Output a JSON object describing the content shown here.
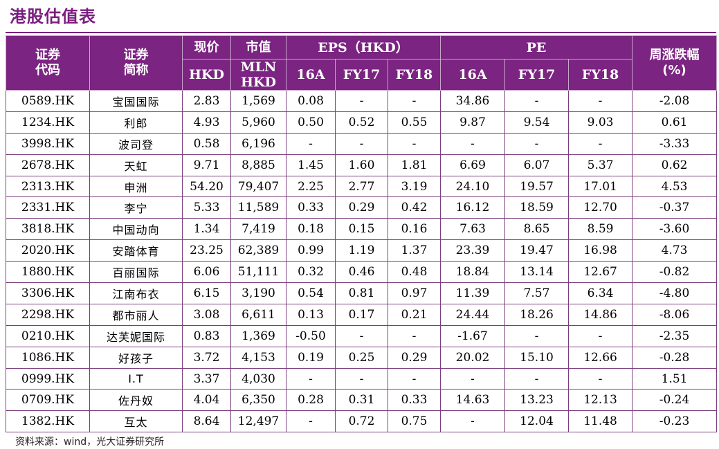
{
  "title": "港股估值表",
  "header": {
    "code_line1": "证券",
    "code_line2": "代码",
    "name_line1": "证券",
    "name_line2": "简称",
    "price": "现价",
    "price_unit": "HKD",
    "mcap": "市值",
    "mcap_unit_line1": "MLN",
    "mcap_unit_line2": "HKD",
    "eps_group": "EPS（HKD）",
    "pe_group": "PE",
    "weekly_line1": "周涨跌幅",
    "weekly_line2": "(%)",
    "years": [
      "16A",
      "FY17",
      "FY18"
    ]
  },
  "rows": [
    {
      "code": "0589.HK",
      "name": "宝国国际",
      "price": "2.83",
      "mcap": "1,569",
      "eps16": "0.08",
      "eps17": "-",
      "eps18": "-",
      "pe16": "34.86",
      "pe17": "-",
      "pe18": "-",
      "chg": "-2.08"
    },
    {
      "code": "1234.HK",
      "name": "利郎",
      "price": "4.93",
      "mcap": "5,960",
      "eps16": "0.50",
      "eps17": "0.52",
      "eps18": "0.55",
      "pe16": "9.87",
      "pe17": "9.54",
      "pe18": "9.03",
      "chg": "0.61"
    },
    {
      "code": "3998.HK",
      "name": "波司登",
      "price": "0.58",
      "mcap": "6,196",
      "eps16": "-",
      "eps17": "-",
      "eps18": "-",
      "pe16": "-",
      "pe17": "-",
      "pe18": "-",
      "chg": "-3.33"
    },
    {
      "code": "2678.HK",
      "name": "天虹",
      "price": "9.71",
      "mcap": "8,885",
      "eps16": "1.45",
      "eps17": "1.60",
      "eps18": "1.81",
      "pe16": "6.69",
      "pe17": "6.07",
      "pe18": "5.37",
      "chg": "0.62"
    },
    {
      "code": "2313.HK",
      "name": "申洲",
      "price": "54.20",
      "mcap": "79,407",
      "eps16": "2.25",
      "eps17": "2.77",
      "eps18": "3.19",
      "pe16": "24.10",
      "pe17": "19.57",
      "pe18": "17.01",
      "chg": "4.53"
    },
    {
      "code": "2331.HK",
      "name": "李宁",
      "price": "5.33",
      "mcap": "11,589",
      "eps16": "0.33",
      "eps17": "0.29",
      "eps18": "0.42",
      "pe16": "16.12",
      "pe17": "18.59",
      "pe18": "12.70",
      "chg": "-0.37"
    },
    {
      "code": "3818.HK",
      "name": "中国动向",
      "price": "1.34",
      "mcap": "7,419",
      "eps16": "0.18",
      "eps17": "0.15",
      "eps18": "0.16",
      "pe16": "7.63",
      "pe17": "8.65",
      "pe18": "8.59",
      "chg": "-3.60"
    },
    {
      "code": "2020.HK",
      "name": "安踏体育",
      "price": "23.25",
      "mcap": "62,389",
      "eps16": "0.99",
      "eps17": "1.19",
      "eps18": "1.37",
      "pe16": "23.39",
      "pe17": "19.47",
      "pe18": "16.98",
      "chg": "4.73"
    },
    {
      "code": "1880.HK",
      "name": "百丽国际",
      "price": "6.06",
      "mcap": "51,111",
      "eps16": "0.32",
      "eps17": "0.46",
      "eps18": "0.48",
      "pe16": "18.84",
      "pe17": "13.14",
      "pe18": "12.67",
      "chg": "-0.82"
    },
    {
      "code": "3306.HK",
      "name": "江南布衣",
      "price": "6.15",
      "mcap": "3,190",
      "eps16": "0.54",
      "eps17": "0.81",
      "eps18": "0.97",
      "pe16": "11.39",
      "pe17": "7.57",
      "pe18": "6.34",
      "chg": "-4.80"
    },
    {
      "code": "2298.HK",
      "name": "都市丽人",
      "price": "3.08",
      "mcap": "6,611",
      "eps16": "0.13",
      "eps17": "0.17",
      "eps18": "0.21",
      "pe16": "24.44",
      "pe17": "18.26",
      "pe18": "14.86",
      "chg": "-8.06"
    },
    {
      "code": "0210.HK",
      "name": "达芙妮国际",
      "price": "0.83",
      "mcap": "1,369",
      "eps16": "-0.50",
      "eps17": "-",
      "eps18": "-",
      "pe16": "-1.67",
      "pe17": "-",
      "pe18": "-",
      "chg": "-2.35"
    },
    {
      "code": "1086.HK",
      "name": "好孩子",
      "price": "3.72",
      "mcap": "4,153",
      "eps16": "0.19",
      "eps17": "0.25",
      "eps18": "0.29",
      "pe16": "20.02",
      "pe17": "15.10",
      "pe18": "12.66",
      "chg": "-0.28"
    },
    {
      "code": "0999.HK",
      "name": "I.T",
      "price": "3.37",
      "mcap": "4,030",
      "eps16": "-",
      "eps17": "-",
      "eps18": "-",
      "pe16": "-",
      "pe17": "-",
      "pe18": "-",
      "chg": "1.51"
    },
    {
      "code": "0709.HK",
      "name": "佐丹奴",
      "price": "4.04",
      "mcap": "6,350",
      "eps16": "0.28",
      "eps17": "0.31",
      "eps18": "0.33",
      "pe16": "14.63",
      "pe17": "13.23",
      "pe18": "12.13",
      "chg": "-0.24"
    },
    {
      "code": "1382.HK",
      "name": "互太",
      "price": "8.64",
      "mcap": "12,497",
      "eps16": "-",
      "eps17": "0.72",
      "eps18": "0.75",
      "pe16": "-",
      "pe17": "12.04",
      "pe18": "11.48",
      "chg": "-0.23"
    }
  ],
  "source": "资料来源：wind，光大证券研究所"
}
